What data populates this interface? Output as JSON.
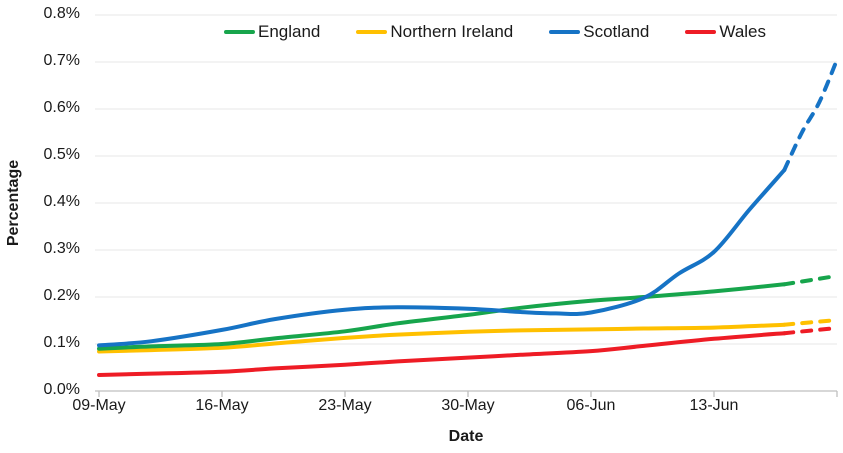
{
  "legend": {
    "items": [
      {
        "label": "England",
        "color": "#17A54C"
      },
      {
        "label": "Northern Ireland",
        "color": "#FFC000"
      },
      {
        "label": "Scotland",
        "color": "#1673C5"
      },
      {
        "label": "Wales",
        "color": "#EE1C25"
      }
    ]
  },
  "axes": {
    "x_title": "Date",
    "y_title": "Percentage"
  },
  "colors": {
    "grid": "#E7E7E7",
    "axis": "#BFBFBF",
    "text": "#1a1a1a"
  },
  "chart_data": {
    "type": "line",
    "title": "",
    "xlabel": "Date",
    "ylabel": "Percentage",
    "ylim": [
      0,
      0.8
    ],
    "y_tick_step": 0.1,
    "y_ticks": [
      "0.0%",
      "0.1%",
      "0.2%",
      "0.3%",
      "0.4%",
      "0.5%",
      "0.6%",
      "0.7%",
      "0.8%"
    ],
    "x_ticks": [
      {
        "day": 0,
        "label": "09-May"
      },
      {
        "day": 7,
        "label": "16-May"
      },
      {
        "day": 14,
        "label": "23-May"
      },
      {
        "day": 21,
        "label": "30-May"
      },
      {
        "day": 28,
        "label": "06-Jun"
      },
      {
        "day": 35,
        "label": "13-Jun"
      }
    ],
    "x_range_days": [
      0,
      42
    ],
    "grid": "horizontal-only",
    "legend_position": "top",
    "dash_start_day": 39,
    "units": "percent",
    "series": [
      {
        "name": "Northern Ireland",
        "color": "#FFC000",
        "points": [
          [
            0,
            0.084
          ],
          [
            3,
            0.087
          ],
          [
            7,
            0.092
          ],
          [
            10,
            0.101
          ],
          [
            14,
            0.113
          ],
          [
            17,
            0.12
          ],
          [
            21,
            0.126
          ],
          [
            24,
            0.129
          ],
          [
            28,
            0.131
          ],
          [
            31,
            0.133
          ],
          [
            35,
            0.135
          ],
          [
            39,
            0.141
          ]
        ],
        "projected_points": [
          [
            39,
            0.141
          ],
          [
            42,
            0.151
          ]
        ]
      },
      {
        "name": "England",
        "color": "#17A54C",
        "points": [
          [
            0,
            0.09
          ],
          [
            3,
            0.095
          ],
          [
            7,
            0.1
          ],
          [
            10,
            0.112
          ],
          [
            14,
            0.127
          ],
          [
            17,
            0.144
          ],
          [
            21,
            0.162
          ],
          [
            24,
            0.177
          ],
          [
            28,
            0.192
          ],
          [
            31,
            0.2
          ],
          [
            35,
            0.212
          ],
          [
            39,
            0.227
          ]
        ],
        "projected_points": [
          [
            39,
            0.227
          ],
          [
            42,
            0.245
          ]
        ]
      },
      {
        "name": "Wales",
        "color": "#EE1C25",
        "points": [
          [
            0,
            0.034
          ],
          [
            3,
            0.037
          ],
          [
            7,
            0.041
          ],
          [
            10,
            0.048
          ],
          [
            14,
            0.056
          ],
          [
            17,
            0.063
          ],
          [
            21,
            0.071
          ],
          [
            24,
            0.077
          ],
          [
            28,
            0.085
          ],
          [
            31,
            0.096
          ],
          [
            35,
            0.111
          ],
          [
            39,
            0.123
          ]
        ],
        "projected_points": [
          [
            39,
            0.123
          ],
          [
            42,
            0.134
          ]
        ]
      },
      {
        "name": "Scotland",
        "color": "#1673C5",
        "points": [
          [
            0,
            0.097
          ],
          [
            3,
            0.106
          ],
          [
            7,
            0.13
          ],
          [
            10,
            0.153
          ],
          [
            14,
            0.173
          ],
          [
            17,
            0.178
          ],
          [
            21,
            0.175
          ],
          [
            24,
            0.168
          ],
          [
            26,
            0.165
          ],
          [
            28,
            0.167
          ],
          [
            31,
            0.198
          ],
          [
            33,
            0.25
          ],
          [
            35,
            0.296
          ],
          [
            37,
            0.385
          ],
          [
            39,
            0.47
          ]
        ],
        "projected_points": [
          [
            39,
            0.47
          ],
          [
            40,
            0.55
          ],
          [
            41,
            0.615
          ],
          [
            42,
            0.705
          ]
        ]
      }
    ]
  }
}
